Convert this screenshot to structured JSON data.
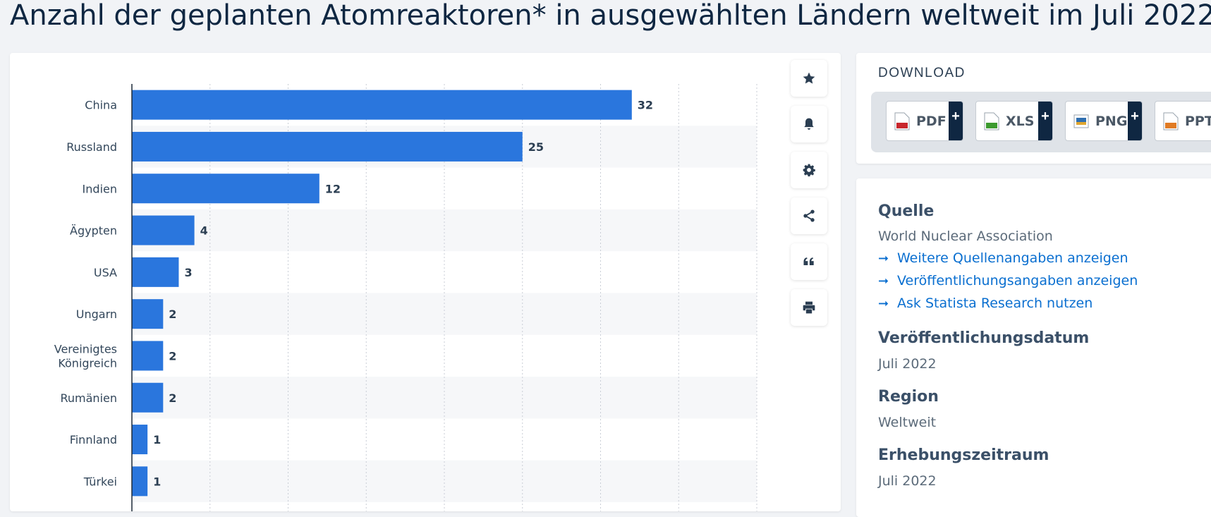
{
  "page": {
    "title": "Anzahl der geplanten Atomreaktoren* in ausgewählten Ländern weltweit im Juli 2022"
  },
  "toolbar": {
    "icons": [
      "star-icon",
      "bell-icon",
      "gear-icon",
      "share-icon",
      "quote-icon",
      "print-icon"
    ]
  },
  "download": {
    "title": "DOWNLOAD",
    "buttons": [
      {
        "label": "PDF",
        "icon": "pdf-file-icon",
        "color": "#c8262c"
      },
      {
        "label": "XLS",
        "icon": "xls-file-icon",
        "color": "#3c9a2e"
      },
      {
        "label": "PNG",
        "icon": "png-file-icon",
        "color": "#2f6fb0"
      },
      {
        "label": "PPT",
        "icon": "ppt-file-icon",
        "color": "#e07b24"
      }
    ]
  },
  "info": {
    "source_heading": "Quelle",
    "source_value": "World Nuclear Association",
    "links": [
      "Weitere Quellenangaben anzeigen",
      "Veröffentlichungsangaben anzeigen",
      "Ask Statista Research nutzen"
    ],
    "publication_heading": "Veröffentlichungsdatum",
    "publication_value": "Juli 2022",
    "region_heading": "Region",
    "region_value": "Weltweit",
    "survey_heading": "Erhebungszeitraum",
    "survey_value": "Juli 2022"
  },
  "colors": {
    "bar": "#2a76dd",
    "accent": "#0f2742",
    "link": "#0a6fd0"
  },
  "chart_data": {
    "type": "bar",
    "orientation": "horizontal",
    "categories": [
      "China",
      "Russland",
      "Indien",
      "Ägypten",
      "USA",
      "Ungarn",
      "Vereinigtes Königreich",
      "Rumänien",
      "Finnland",
      "Türkei"
    ],
    "category_lines": [
      [
        "China"
      ],
      [
        "Russland"
      ],
      [
        "Indien"
      ],
      [
        "Ägypten"
      ],
      [
        "USA"
      ],
      [
        "Ungarn"
      ],
      [
        "Vereinigtes",
        "Königreich"
      ],
      [
        "Rumänien"
      ],
      [
        "Finnland"
      ],
      [
        "Türkei"
      ]
    ],
    "values": [
      32,
      25,
      12,
      4,
      3,
      2,
      2,
      2,
      1,
      1
    ],
    "xlim": [
      0,
      40
    ],
    "grid": true,
    "title": "",
    "xlabel": "",
    "ylabel": ""
  }
}
